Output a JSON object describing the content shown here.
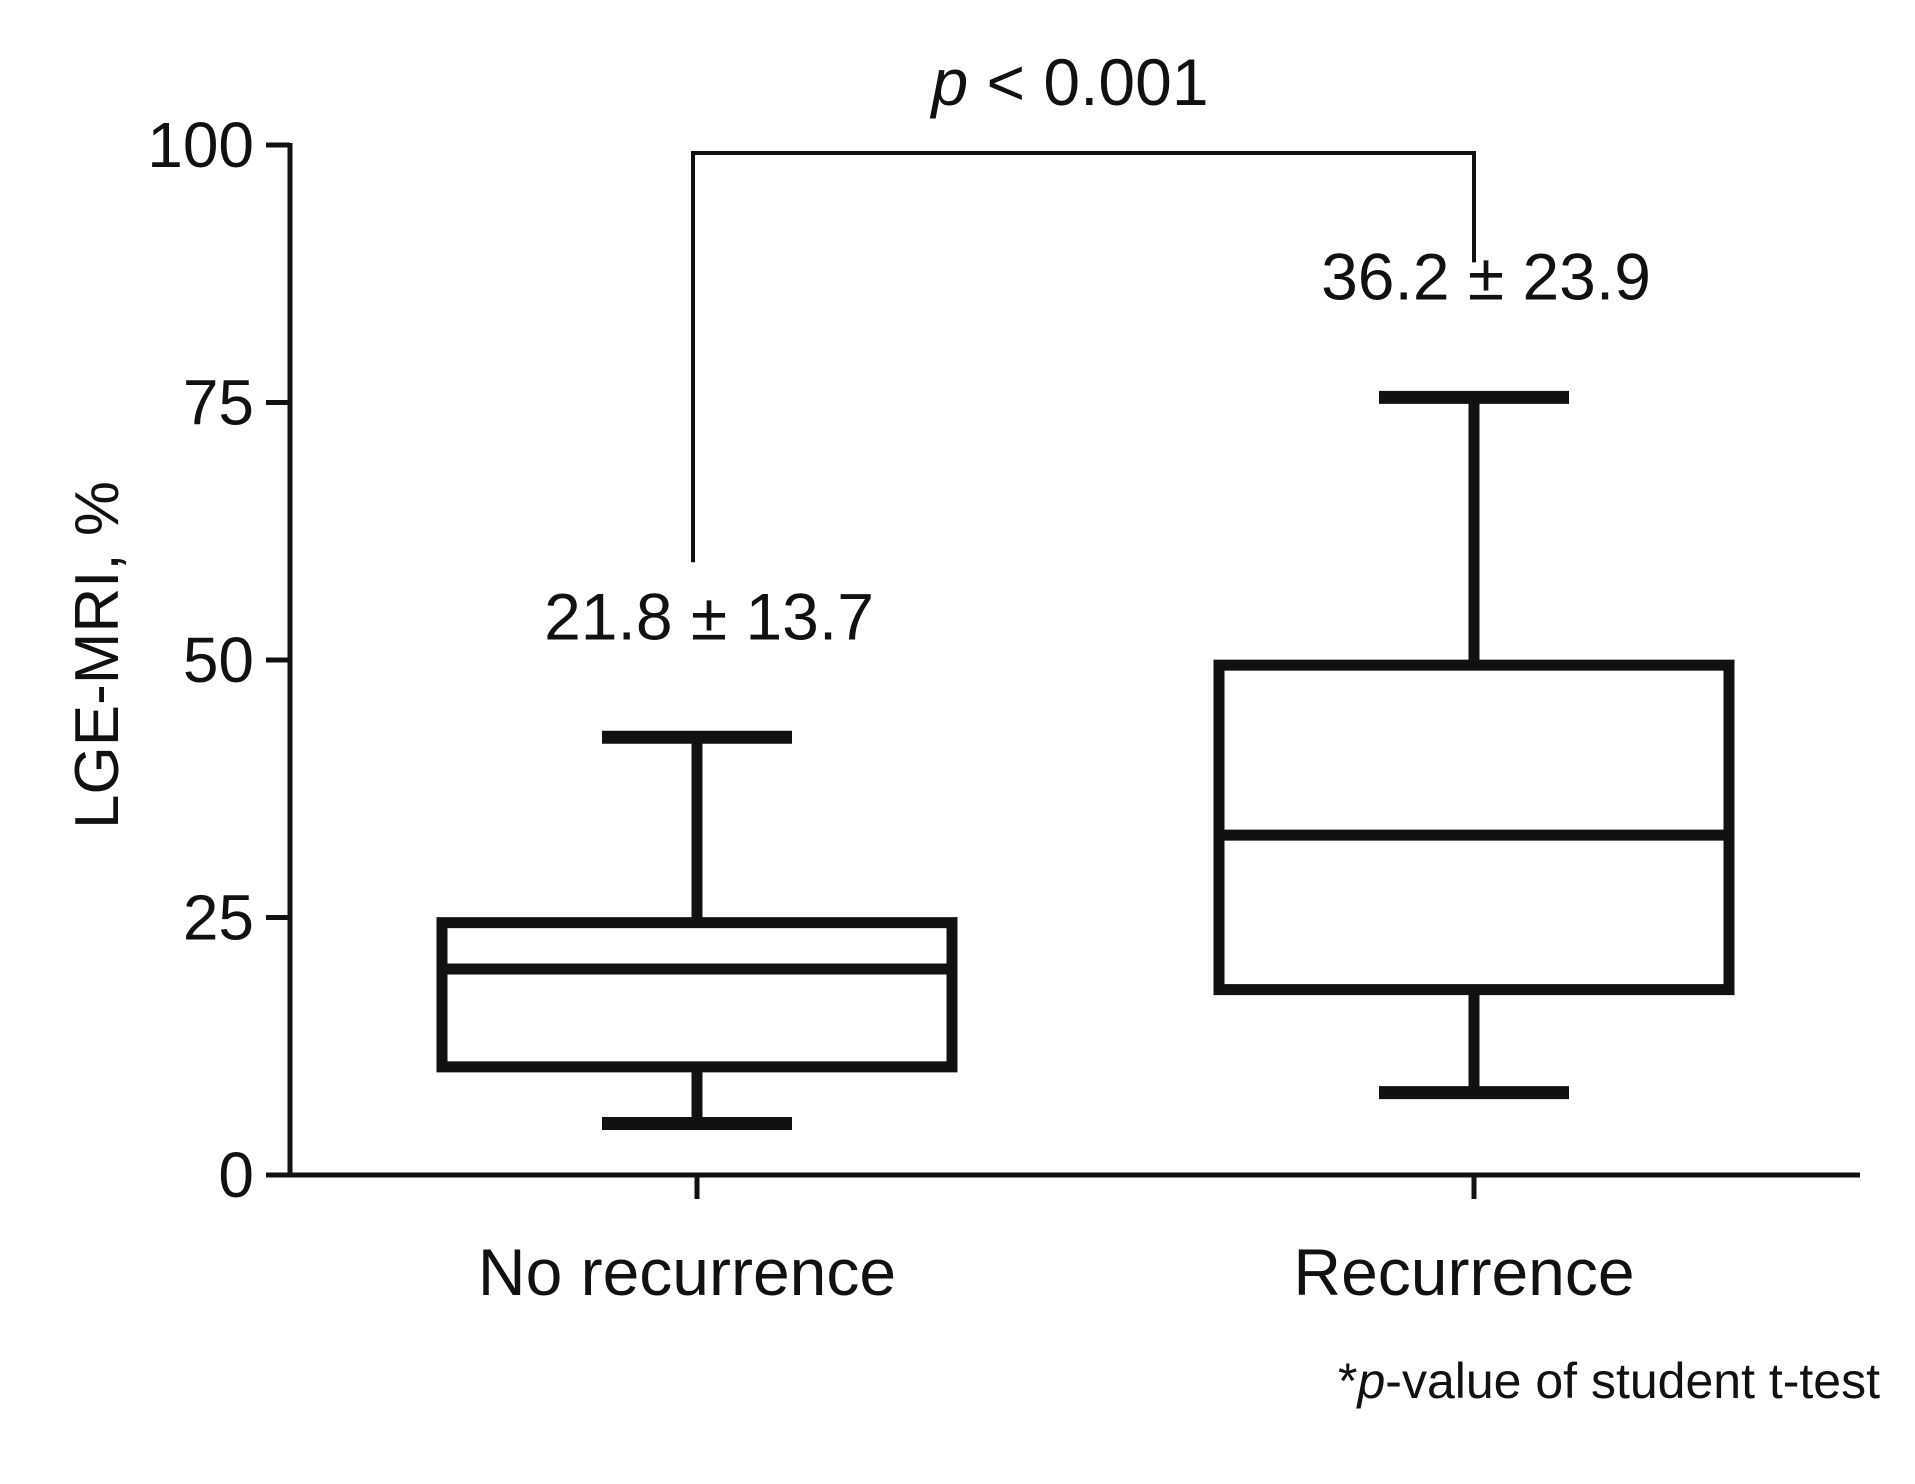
{
  "chart_data": {
    "type": "box",
    "ylabel": "LGE-MRI, %",
    "xlabel": "",
    "ylim": [
      0,
      100
    ],
    "yticks": [
      "0",
      "25",
      "50",
      "75",
      "100"
    ],
    "grid": false,
    "categories": [
      "No recurrence",
      "Recurrence"
    ],
    "boxes": [
      {
        "name": "No recurrence",
        "min": 5,
        "q1": 10.5,
        "median": 20,
        "q3": 24.5,
        "max": 42.5,
        "annotation": "21.8 ± 13.7"
      },
      {
        "name": "Recurrence",
        "min": 8,
        "q1": 18,
        "median": 33,
        "q3": 49.5,
        "max": 75.5,
        "annotation": "36.2 ± 23.9"
      }
    ],
    "significance": {
      "p_prefix": "p",
      "p_rest": " < 0.001",
      "between": [
        "No recurrence",
        "Recurrence"
      ]
    },
    "footnote": {
      "star": "*",
      "p": "p",
      "rest": "-value of student t-test"
    }
  }
}
